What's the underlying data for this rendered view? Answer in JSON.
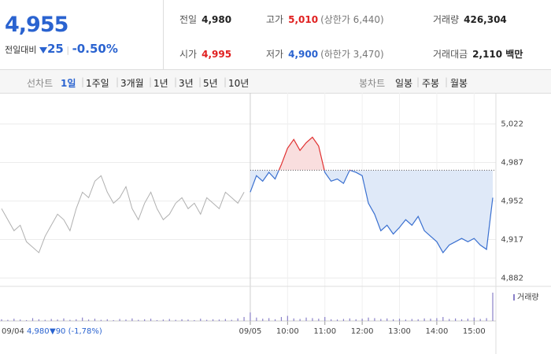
{
  "summary": {
    "price": "4,955",
    "change_label": "전일대비",
    "change": "25",
    "change_rate": "-0.50%"
  },
  "quote": {
    "rows": [
      [
        {
          "label": "전일",
          "value": "4,980"
        },
        {
          "label": "고가",
          "value": "5,010",
          "note": "(상한가 6,440)"
        },
        {
          "label": "거래량",
          "value": "426,304"
        }
      ],
      [
        {
          "label": "시가",
          "value": "4,995"
        },
        {
          "label": "저가",
          "value": "4,900",
          "note": "(하한가 3,470)"
        },
        {
          "label": "거래대금",
          "value": "2,110 백만"
        }
      ]
    ]
  },
  "tabs": {
    "line_label": "선차트",
    "line_items": [
      "1일",
      "1주일",
      "3개월",
      "1년",
      "3년",
      "5년",
      "10년"
    ],
    "candle_label": "봉차트",
    "candle_items": [
      "일봉",
      "주봉",
      "월봉"
    ]
  },
  "chart_data": {
    "type": "line",
    "categories": [
      null,
      null,
      null,
      null,
      null,
      null,
      null,
      null,
      null,
      null,
      null,
      null,
      null,
      null,
      null,
      null,
      null,
      null,
      null,
      null,
      null,
      null,
      null,
      null,
      null,
      null,
      null,
      null,
      null,
      null,
      null,
      null,
      null,
      null,
      null,
      null,
      null,
      null,
      null,
      null,
      "09/05",
      null,
      null,
      null,
      null,
      null,
      "10:00",
      null,
      null,
      null,
      null,
      null,
      "11:00",
      null,
      null,
      null,
      null,
      null,
      "12:00",
      null,
      null,
      null,
      null,
      null,
      "13:00",
      null,
      null,
      null,
      null,
      null,
      "14:00",
      null,
      null,
      null,
      null,
      null,
      "15:00",
      null,
      null,
      null
    ],
    "series": [
      {
        "color": "#b0b0b0",
        "values": [
          4945,
          4935,
          4925,
          4930,
          4915,
          4910,
          4905,
          4920,
          4930,
          4940,
          4935,
          4925,
          4945,
          4960,
          4955,
          4970,
          4975,
          4960,
          4950,
          4955,
          4965,
          4945,
          4935,
          4950,
          4960,
          4945,
          4935,
          4940,
          4950,
          4955,
          4945,
          4950,
          4940,
          4955,
          4950,
          4945,
          4960,
          4955,
          4950,
          4960,
          null,
          null,
          null,
          null,
          null,
          null,
          null,
          null,
          null,
          null,
          null,
          null,
          null,
          null,
          null,
          null,
          null,
          null,
          null,
          null,
          null,
          null,
          null,
          null,
          null,
          null,
          null,
          null,
          null,
          null,
          null,
          null,
          null,
          null,
          null,
          null,
          null,
          null,
          null,
          null
        ]
      },
      {
        "color": "#3a70d0",
        "color_up": "#e03030",
        "values": [
          null,
          null,
          null,
          null,
          null,
          null,
          null,
          null,
          null,
          null,
          null,
          null,
          null,
          null,
          null,
          null,
          null,
          null,
          null,
          null,
          null,
          null,
          null,
          null,
          null,
          null,
          null,
          null,
          null,
          null,
          null,
          null,
          null,
          null,
          null,
          null,
          null,
          null,
          null,
          null,
          4960,
          4975,
          4970,
          4978,
          4972,
          4985,
          5000,
          5008,
          4998,
          5005,
          5010,
          5002,
          4978,
          4970,
          4972,
          4968,
          4980,
          4978,
          4975,
          4950,
          4940,
          4925,
          4930,
          4922,
          4928,
          4935,
          4930,
          4938,
          4925,
          4920,
          4915,
          4905,
          4912,
          4915,
          4918,
          4915,
          4918,
          4912,
          4908,
          4955
        ]
      }
    ],
    "reference": 4980,
    "ylim": [
      4868,
      5036
    ],
    "yticks": [
      {
        "value": 5022,
        "label": "5,022"
      },
      {
        "value": 4987,
        "label": "4,987"
      },
      {
        "value": 4952,
        "label": "4,952"
      },
      {
        "value": 4917,
        "label": "4,917"
      },
      {
        "value": 4882,
        "label": "4,882"
      }
    ],
    "grid": true,
    "volume_label": "거래량",
    "volume_color": "#8a80c8",
    "volume_ylim": [
      0,
      100
    ],
    "volume": [
      6,
      4,
      8,
      5,
      3,
      10,
      6,
      4,
      7,
      5,
      9,
      4,
      6,
      12,
      5,
      8,
      4,
      6,
      3,
      7,
      5,
      9,
      4,
      6,
      8,
      3,
      5,
      7,
      4,
      6,
      5,
      3,
      8,
      4,
      6,
      5,
      7,
      4,
      9,
      14,
      30,
      12,
      8,
      10,
      6,
      14,
      18,
      9,
      7,
      12,
      10,
      8,
      14,
      6,
      5,
      7,
      9,
      6,
      8,
      12,
      10,
      7,
      9,
      6,
      8,
      5,
      7,
      6,
      9,
      8,
      10,
      14,
      7,
      9,
      6,
      8,
      12,
      7,
      10,
      100
    ],
    "footer": {
      "date": "09/04",
      "price": "4,980",
      "change": "▼90 (-1,78%)"
    }
  }
}
